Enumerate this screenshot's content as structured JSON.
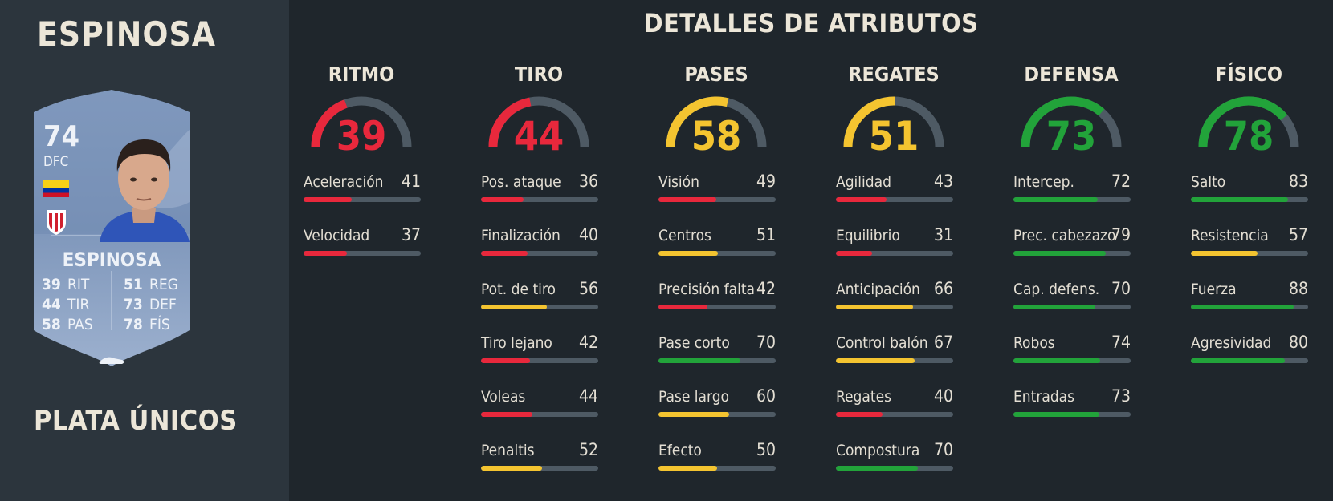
{
  "player": {
    "name": "ESPINOSA",
    "version": "PLATA ÚNICOS"
  },
  "card": {
    "rating": "74",
    "position": "DFC",
    "name": "ESPINOSA",
    "stats": [
      {
        "value": "39",
        "label": "RIT"
      },
      {
        "value": "44",
        "label": "TIR"
      },
      {
        "value": "58",
        "label": "PAS"
      },
      {
        "value": "51",
        "label": "REG"
      },
      {
        "value": "73",
        "label": "DEF"
      },
      {
        "value": "78",
        "label": "FÍS"
      }
    ],
    "flag_icon": "colombia-flag-icon",
    "club_icon": "girona-badge-icon"
  },
  "title": "DETALLES DE ATRIBUTOS",
  "colors": {
    "red": "#e8283c",
    "yellow": "#f4c430",
    "green": "#22a33a",
    "track": "#4e5a64",
    "background": "#1f262c",
    "left_panel": "#2c353d"
  },
  "categories": [
    {
      "name": "RITMO",
      "value": 39,
      "attributes": [
        {
          "name": "Aceleración",
          "value": 41
        },
        {
          "name": "Velocidad",
          "value": 37
        }
      ]
    },
    {
      "name": "TIRO",
      "value": 44,
      "attributes": [
        {
          "name": "Pos. ataque",
          "value": 36
        },
        {
          "name": "Finalización",
          "value": 40
        },
        {
          "name": "Pot. de tiro",
          "value": 56
        },
        {
          "name": "Tiro lejano",
          "value": 42
        },
        {
          "name": "Voleas",
          "value": 44
        },
        {
          "name": "Penaltis",
          "value": 52
        }
      ]
    },
    {
      "name": "PASES",
      "value": 58,
      "attributes": [
        {
          "name": "Visión",
          "value": 49
        },
        {
          "name": "Centros",
          "value": 51
        },
        {
          "name": "Precisión falta",
          "value": 42
        },
        {
          "name": "Pase corto",
          "value": 70
        },
        {
          "name": "Pase largo",
          "value": 60
        },
        {
          "name": "Efecto",
          "value": 50
        }
      ]
    },
    {
      "name": "REGATES",
      "value": 51,
      "attributes": [
        {
          "name": "Agilidad",
          "value": 43
        },
        {
          "name": "Equilibrio",
          "value": 31
        },
        {
          "name": "Anticipación",
          "value": 66
        },
        {
          "name": "Control balón",
          "value": 67
        },
        {
          "name": "Regates",
          "value": 40
        },
        {
          "name": "Compostura",
          "value": 70
        }
      ]
    },
    {
      "name": "DEFENSA",
      "value": 73,
      "attributes": [
        {
          "name": "Intercep.",
          "value": 72
        },
        {
          "name": "Prec. cabezazo",
          "value": 79
        },
        {
          "name": "Cap. defens.",
          "value": 70
        },
        {
          "name": "Robos",
          "value": 74
        },
        {
          "name": "Entradas",
          "value": 73
        }
      ]
    },
    {
      "name": "FÍSICO",
      "value": 78,
      "attributes": [
        {
          "name": "Salto",
          "value": 83
        },
        {
          "name": "Resistencia",
          "value": 57
        },
        {
          "name": "Fuerza",
          "value": 88
        },
        {
          "name": "Agresividad",
          "value": 80
        }
      ]
    }
  ]
}
